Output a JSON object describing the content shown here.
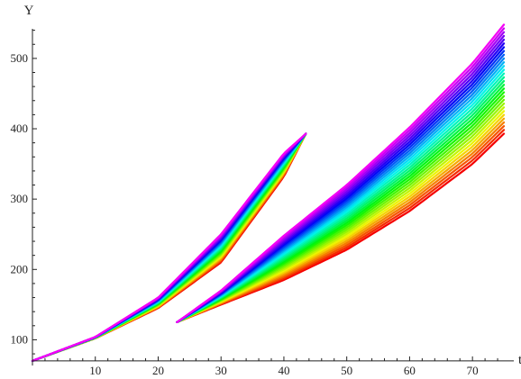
{
  "chart_data": {
    "type": "line",
    "title": "",
    "xlabel": "t",
    "ylabel": "Y",
    "xlim": [
      0,
      76
    ],
    "ylim": [
      66,
      560
    ],
    "x_ticks": [
      10,
      20,
      30,
      40,
      50,
      60,
      70
    ],
    "y_ticks": [
      100,
      200,
      300,
      400,
      500
    ],
    "grid": false,
    "legend": "none",
    "color_scale": "rainbow, red (lower) to magenta (upper)",
    "families": [
      {
        "series_count": 30,
        "x": [
          0,
          10,
          20,
          30,
          40,
          43.5
        ],
        "lower_values": [
          70,
          102,
          145,
          210,
          332,
          393
        ],
        "upper_values": [
          70,
          104,
          160,
          250,
          365,
          393
        ]
      },
      {
        "series_count": 30,
        "x": [
          23,
          30,
          40,
          50,
          60,
          70,
          75
        ],
        "lower_values": [
          125,
          150,
          185,
          228,
          283,
          350,
          393
        ],
        "upper_values": [
          125,
          170,
          248,
          320,
          402,
          493,
          548
        ]
      }
    ]
  }
}
